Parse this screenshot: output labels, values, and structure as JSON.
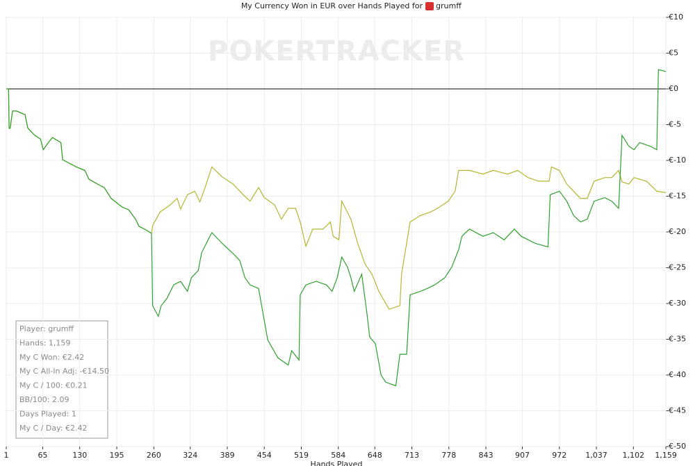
{
  "chart_data": {
    "type": "line",
    "title": "My Currency Won in EUR over Hands Played for",
    "player": "grumff",
    "watermark": "POKERTRACKER",
    "x_label": "Hands Played",
    "xlim": [
      1,
      1159
    ],
    "xticks": [
      1,
      65,
      130,
      195,
      260,
      324,
      389,
      454,
      519,
      584,
      648,
      713,
      778,
      843,
      907,
      972,
      {
        "value": 1037,
        "label": "1,037"
      },
      {
        "value": 1102,
        "label": "1,102"
      },
      {
        "value": 1159,
        "label": "1,159"
      }
    ],
    "ylim": [
      -50,
      10
    ],
    "yticks": [
      {
        "value": 10,
        "label": "€10"
      },
      {
        "value": 5,
        "label": "€5"
      },
      {
        "value": 0,
        "label": "€0"
      },
      {
        "value": -5,
        "label": "€-5"
      },
      {
        "value": -10,
        "label": "€-10"
      },
      {
        "value": -15,
        "label": "€-15"
      },
      {
        "value": -20,
        "label": "€-20"
      },
      {
        "value": -25,
        "label": "€-25"
      },
      {
        "value": -30,
        "label": "€-30"
      },
      {
        "value": -35,
        "label": "€-35"
      },
      {
        "value": -40,
        "label": "€-40"
      },
      {
        "value": -45,
        "label": "€-45"
      },
      {
        "value": -50,
        "label": "€-50"
      }
    ],
    "grid": true,
    "zero_line": "#000000",
    "series": [
      {
        "color": "#b5b530",
        "x": [
          1,
          5,
          6,
          8,
          12,
          19,
          34,
          39,
          51,
          61,
          66,
          75,
          82,
          97,
          100,
          112,
          124,
          139,
          146,
          161,
          173,
          185,
          204,
          216,
          228,
          234,
          246,
          256,
          258,
          271,
          289,
          301,
          307,
          319,
          332,
          341,
          350,
          362,
          380,
          399,
          417,
          429,
          444,
          454,
          472,
          484,
          496,
          509,
          517,
          527,
          539,
          557,
          570,
          575,
          585,
          590,
          606,
          618,
          631,
          643,
          655,
          673,
          692,
          695,
          710,
          728,
          746,
          758,
          777,
          789,
          795,
          814,
          838,
          856,
          881,
          899,
          917,
          936,
          954,
          958,
          972,
          985,
          997,
          1009,
          1021,
          1033,
          1052,
          1064,
          1076,
          1082,
          1094,
          1103,
          1125,
          1143,
          1159
        ],
        "values": [
          0,
          0,
          -5.5,
          -5.5,
          -3.1,
          -3.1,
          -3.6,
          -5.5,
          -6.5,
          -7.0,
          -8.5,
          -7.5,
          -6.8,
          -7.5,
          -9.9,
          -10.4,
          -10.9,
          -11.4,
          -12.6,
          -13.3,
          -13.8,
          -15.3,
          -16.5,
          -16.9,
          -18.2,
          -19.2,
          -19.7,
          -20.2,
          -19.1,
          -17.2,
          -16.2,
          -15.3,
          -16.8,
          -14.8,
          -14.3,
          -15.8,
          -13.8,
          -10.9,
          -12.3,
          -13.3,
          -14.8,
          -15.7,
          -13.8,
          -15.2,
          -16.2,
          -18.2,
          -16.7,
          -16.7,
          -18.6,
          -22.0,
          -19.6,
          -19.6,
          -18.6,
          -20.6,
          -21.1,
          -15.7,
          -18.2,
          -21.6,
          -24.5,
          -25.9,
          -28.3,
          -30.8,
          -30.3,
          -25.9,
          -18.6,
          -17.7,
          -17.2,
          -16.7,
          -15.7,
          -14.3,
          -11.4,
          -11.4,
          -11.9,
          -11.4,
          -11.9,
          -11.4,
          -12.4,
          -12.9,
          -12.9,
          -10.9,
          -11.4,
          -13.3,
          -14.3,
          -15.3,
          -15.3,
          -12.9,
          -12.4,
          -12.4,
          -11.4,
          -13.0,
          -13.3,
          -12.4,
          -12.9,
          -14.3,
          -14.5
        ]
      },
      {
        "color": "#2ca02c",
        "x": [
          1,
          5,
          6,
          8,
          12,
          19,
          34,
          39,
          51,
          61,
          66,
          75,
          82,
          97,
          100,
          112,
          124,
          139,
          146,
          161,
          173,
          185,
          204,
          216,
          228,
          234,
          246,
          256,
          258,
          268,
          273,
          283,
          295,
          307,
          319,
          326,
          338,
          344,
          356,
          362,
          380,
          399,
          411,
          420,
          429,
          444,
          460,
          478,
          496,
          502,
          515,
          517,
          527,
          545,
          563,
          573,
          582,
          590,
          600,
          606,
          612,
          625,
          634,
          639,
          649,
          659,
          667,
          685,
          692,
          704,
          710,
          728,
          740,
          753,
          771,
          783,
          795,
          801,
          814,
          838,
          856,
          875,
          893,
          905,
          930,
          952,
          956,
          972,
          985,
          997,
          1009,
          1021,
          1033,
          1052,
          1064,
          1076,
          1082,
          1094,
          1103,
          1113,
          1131,
          1143,
          1146,
          1159
        ],
        "values": [
          0,
          0,
          -5.5,
          -5.5,
          -3.1,
          -3.1,
          -3.6,
          -5.5,
          -6.5,
          -7.0,
          -8.5,
          -7.5,
          -6.8,
          -7.5,
          -9.9,
          -10.4,
          -10.9,
          -11.4,
          -12.6,
          -13.3,
          -13.8,
          -15.3,
          -16.5,
          -16.9,
          -18.2,
          -19.2,
          -19.7,
          -20.2,
          -30.3,
          -31.8,
          -30.3,
          -29.3,
          -27.4,
          -26.9,
          -28.3,
          -26.4,
          -25.4,
          -22.9,
          -21.0,
          -20.1,
          -21.6,
          -23.0,
          -24.0,
          -26.4,
          -27.4,
          -27.9,
          -35.1,
          -37.6,
          -38.6,
          -36.6,
          -37.9,
          -28.8,
          -27.4,
          -26.9,
          -27.4,
          -28.3,
          -26.4,
          -23.5,
          -24.9,
          -26.4,
          -28.3,
          -25.9,
          -31.3,
          -34.7,
          -35.6,
          -40.0,
          -41.0,
          -41.5,
          -37.1,
          -37.1,
          -28.8,
          -28.3,
          -27.9,
          -27.4,
          -26.4,
          -24.9,
          -22.5,
          -20.6,
          -19.6,
          -20.6,
          -20.1,
          -21.1,
          -19.6,
          -20.6,
          -21.6,
          -22.1,
          -14.8,
          -14.3,
          -15.7,
          -17.7,
          -18.6,
          -18.2,
          -15.7,
          -15.2,
          -15.7,
          -16.7,
          -6.5,
          -8.0,
          -8.5,
          -7.5,
          -8.0,
          -8.5,
          2.7,
          2.42
        ]
      }
    ],
    "info_box": [
      "Player: grumff",
      "Hands: 1,159",
      "My C Won: €2.42",
      "My C All-In Adj: -€14.50",
      "My C / 100: €0.21",
      "BB/100: 2.09",
      "Days Played: 1",
      "My C / Day: €2.42"
    ]
  }
}
